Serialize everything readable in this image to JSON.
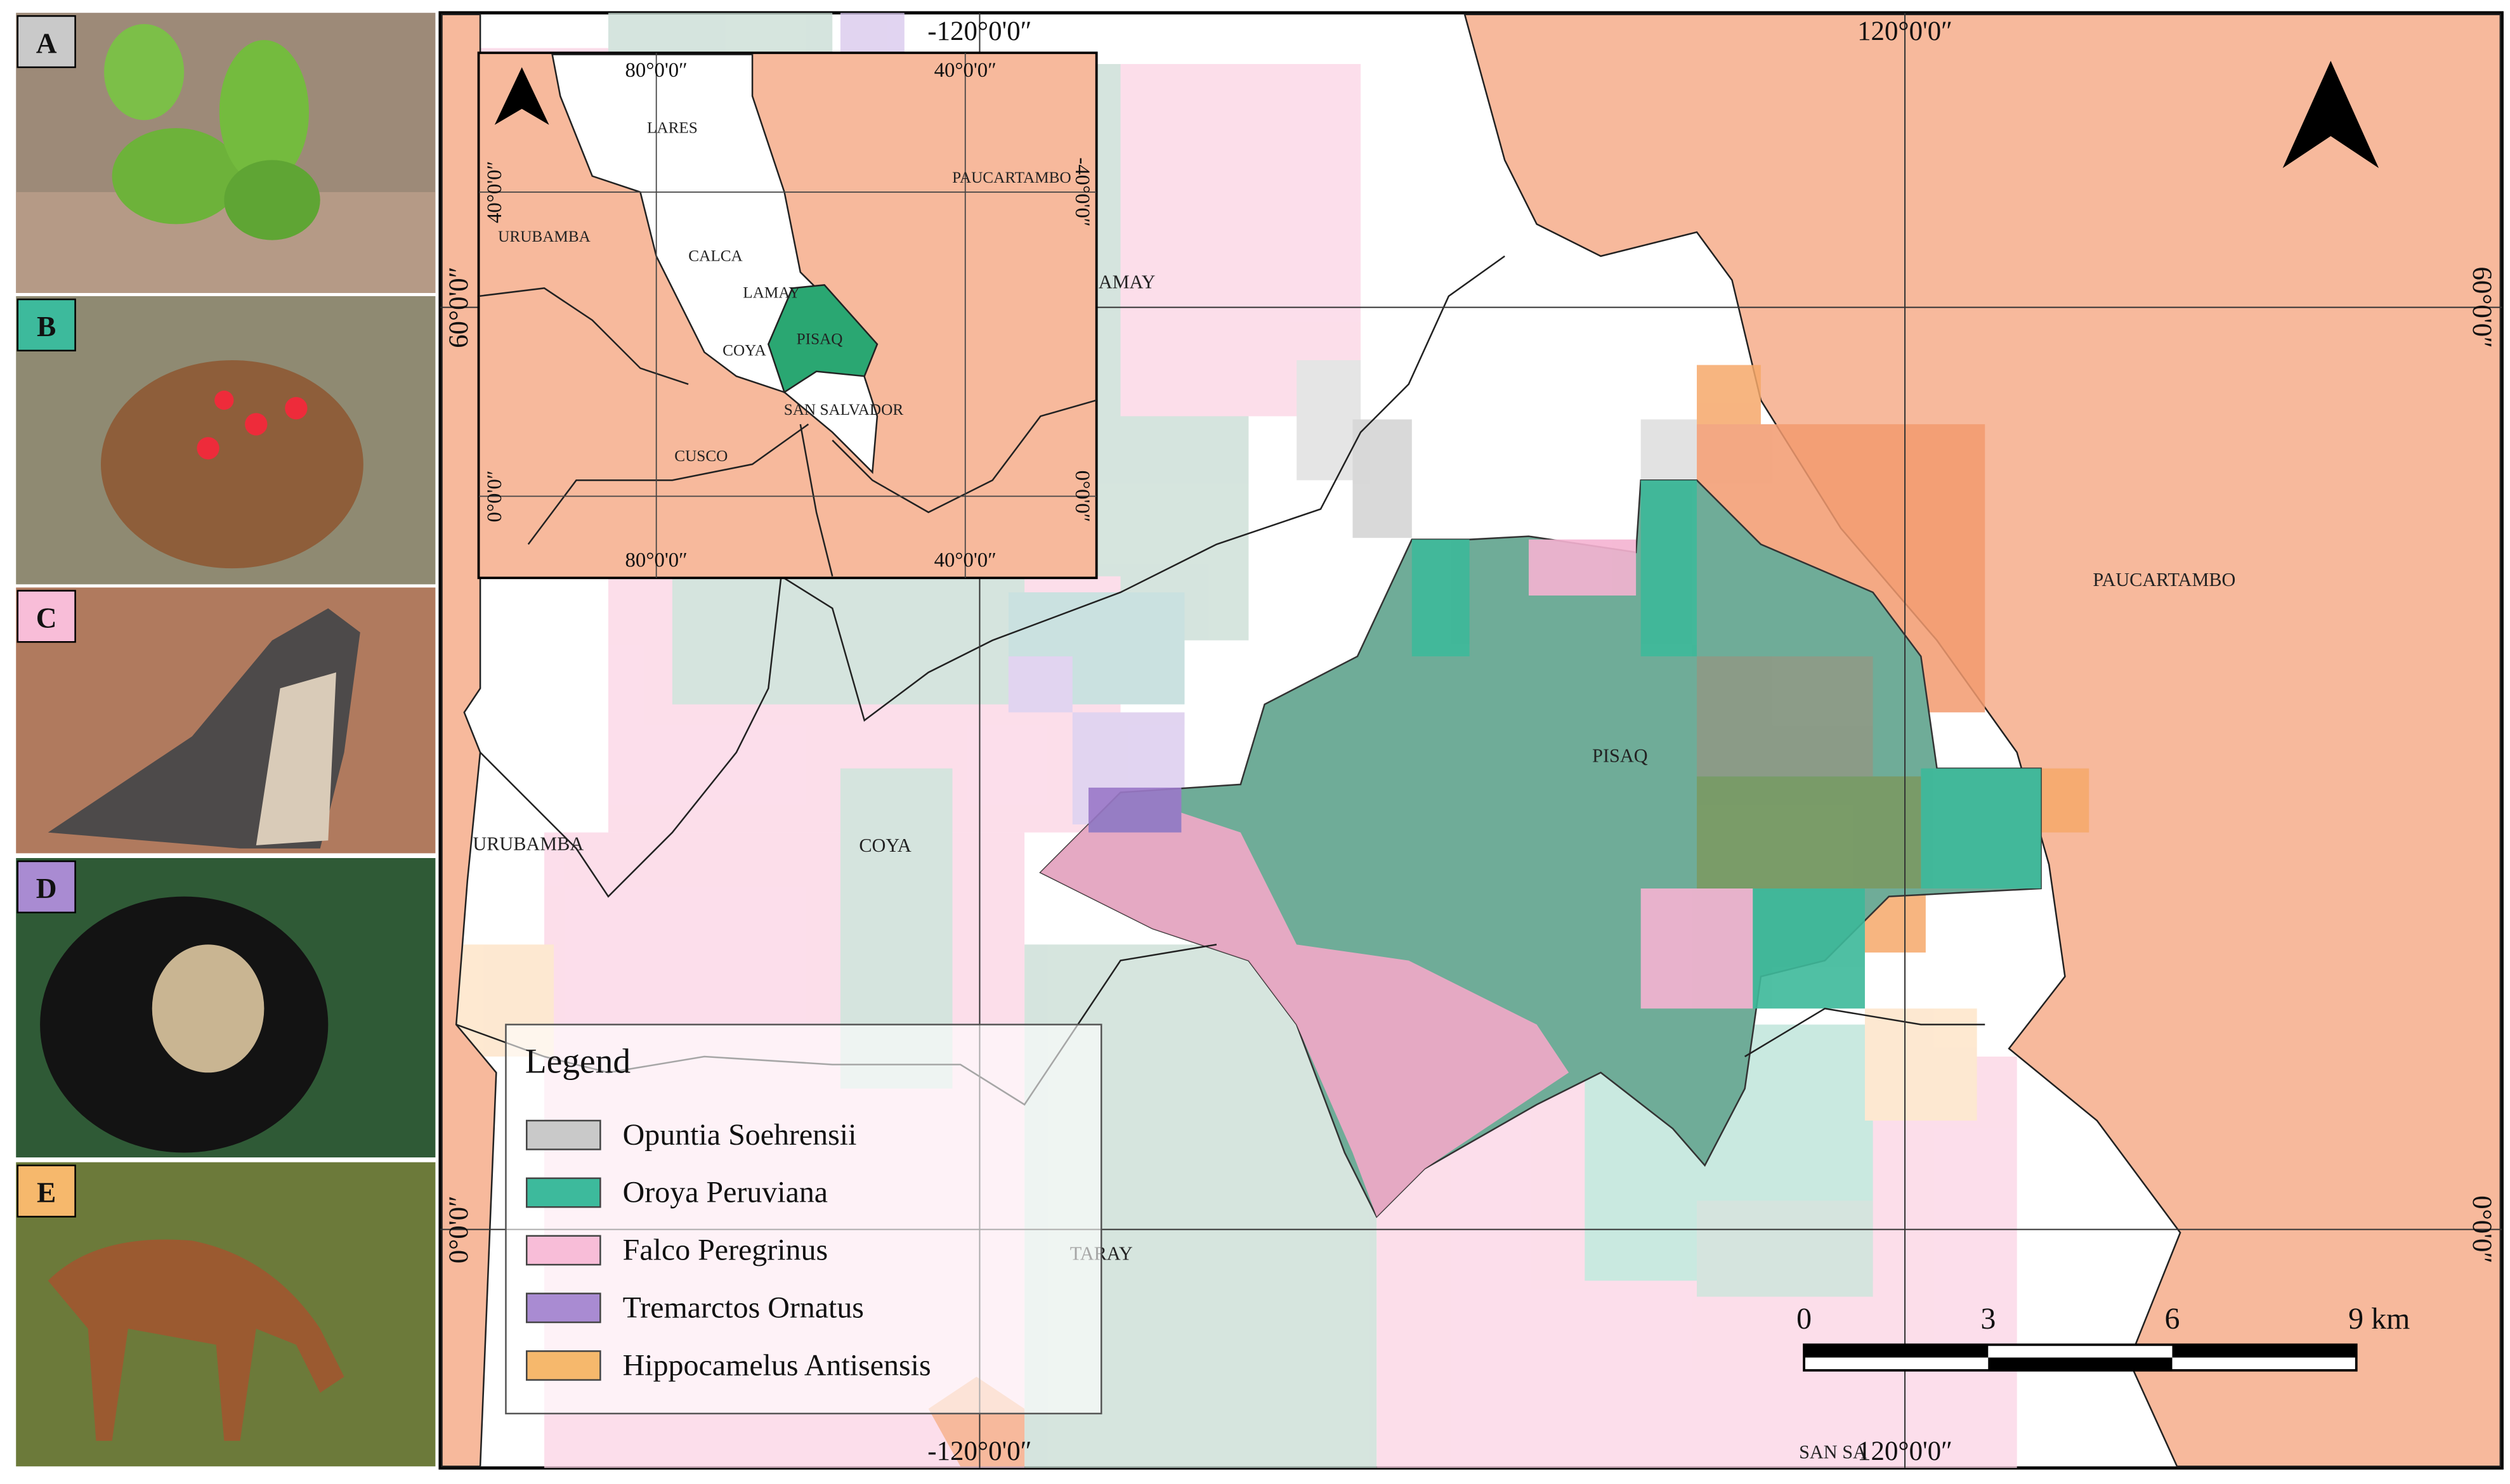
{
  "panels": [
    {
      "letter": "A",
      "color": "#c9c9c9"
    },
    {
      "letter": "B",
      "color": "#3dba9c"
    },
    {
      "letter": "C",
      "color": "#f8bdd8"
    },
    {
      "letter": "D",
      "color": "#a98bd2"
    },
    {
      "letter": "E",
      "color": "#f6b86c"
    }
  ],
  "map": {
    "labels": {
      "pisaq": "PISAQ",
      "paucartambo": "PAUCARTAMBO",
      "urubamba": "URUBAMBA",
      "coya": "COYA",
      "taray": "TARAY",
      "lamay": "AMAY",
      "san_salvador": "SAN SA"
    },
    "grid": {
      "top_left": "-120°0'0″",
      "top_right": "120°0'0″",
      "bottom_left": "-120°0'0″",
      "bottom_right": "120°0'0″",
      "left_top": "60°0'0″",
      "left_bottom": "0°0'0″",
      "right_top": "60°0'0″",
      "right_bottom": "0°0'0″"
    }
  },
  "inset": {
    "labels": {
      "lares": "LARES",
      "urubamba": "URUBAMBA",
      "calca": "CALCA",
      "lamay": "LAMAY",
      "coya": "COYA",
      "pisaq": "PISAQ",
      "san_salvador": "SAN SALVADOR",
      "cusco": "CUSCO",
      "paucartambo": "PAUCARTAMBO"
    },
    "grid": {
      "top_left": "80°0'0″",
      "top_right": "40°0'0″",
      "bottom_left": "80°0'0″",
      "bottom_right": "40°0'0″",
      "left_top": "40°0'0″",
      "left_bottom": "0°0'0″",
      "right_top": "-40°0'0″",
      "right_bottom": "0°0'0″"
    }
  },
  "legend": {
    "title": "Legend",
    "items": [
      {
        "label": "Opuntia Soehrensii",
        "color": "#c9c9c9"
      },
      {
        "label": "Oroya Peruviana",
        "color": "#3dba9c"
      },
      {
        "label": "Falco Peregrinus",
        "color": "#f8bdd8"
      },
      {
        "label": "Tremarctos Ornatus",
        "color": "#a98bd2"
      },
      {
        "label": "Hippocamelus Antisensis",
        "color": "#f6b86c"
      }
    ]
  },
  "scale_bar": {
    "labels": [
      "0",
      "3",
      "6",
      "9 km"
    ]
  }
}
